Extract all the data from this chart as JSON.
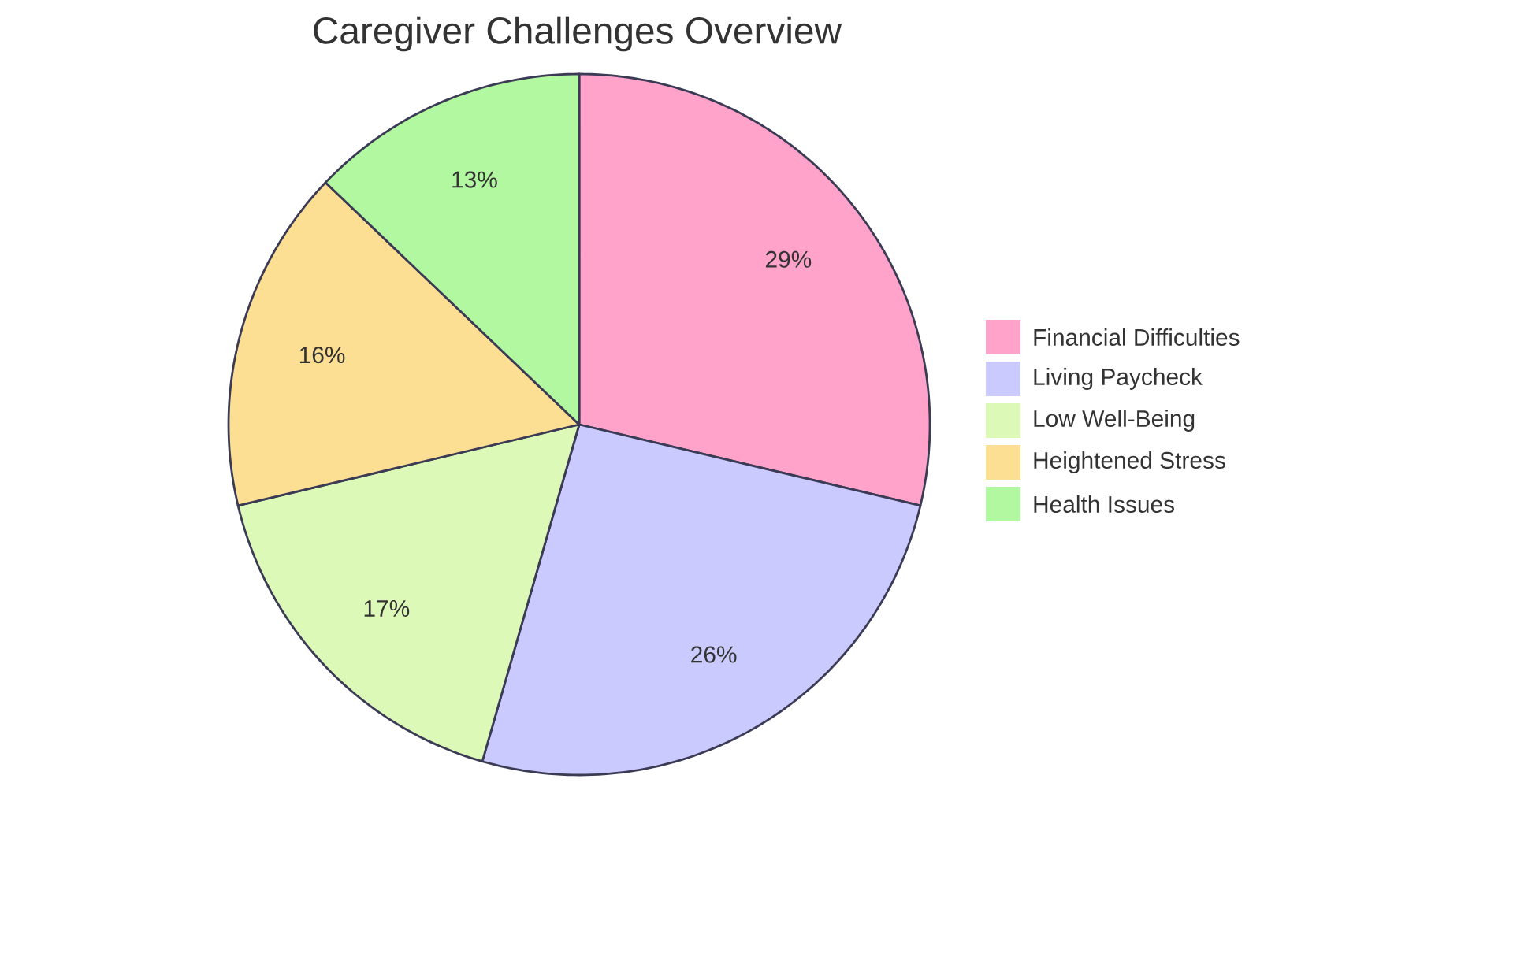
{
  "chart_data": {
    "type": "pie",
    "title": "Caregiver Challenges Overview",
    "categories": [
      "Financial Difficulties",
      "Living Paycheck",
      "Low Well-Being",
      "Heightened Stress",
      "Health Issues"
    ],
    "values": [
      29,
      26,
      17,
      16,
      13
    ],
    "value_labels": [
      "29%",
      "26%",
      "17%",
      "16%",
      "13%"
    ],
    "colors": [
      "#ffa3cb",
      "#cacaff",
      "#dcf9b8",
      "#fddf94",
      "#b2f8a0"
    ],
    "legend": "right"
  }
}
